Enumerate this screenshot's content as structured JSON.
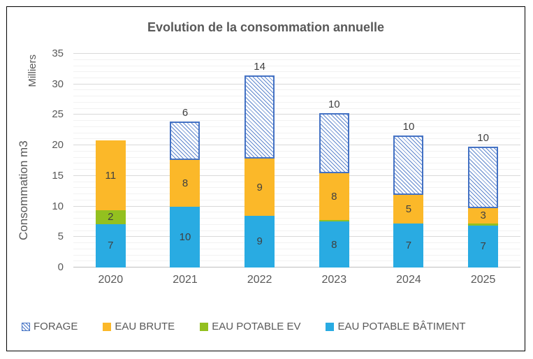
{
  "window": {
    "background": "#FFFFFF",
    "frame_border_color": "#000000"
  },
  "colors": {
    "title_text": "#595959",
    "axis_text": "#595959",
    "value_label_text": "#404040",
    "grid_minor": "#F2F2F2",
    "grid_major": "#D9D9D9",
    "grid_baseline": "#BFBFBF",
    "forage_blue": "#4472C4",
    "eau_brute_orange": "#FBB829",
    "eau_potable_ev_green": "#93C01F",
    "eau_potable_batiment_blue": "#29ABE2"
  },
  "chart_data": {
    "type": "bar",
    "stacked": true,
    "title": "Evolution de la consommation annuelle",
    "y_axis_title": "Consommation m3",
    "y_unit_label": "Milliers",
    "xlabel": "",
    "categories": [
      "2020",
      "2021",
      "2022",
      "2023",
      "2024",
      "2025"
    ],
    "ylim": [
      0,
      35
    ],
    "yticks": [
      0,
      5,
      10,
      15,
      20,
      25,
      30,
      35
    ],
    "minor_grid_step": 1,
    "grid": true,
    "legend_position": "bottom",
    "legend_order": "reverse-of-stack",
    "series": [
      {
        "name": "EAU POTABLE BÂTIMENT",
        "color": "#29ABE2",
        "style": "solid",
        "values": [
          7.1,
          9.9,
          8.5,
          7.5,
          7.2,
          6.9
        ],
        "labels": [
          "7",
          "10",
          "9",
          "8",
          "7",
          "7"
        ],
        "label_position": "inside"
      },
      {
        "name": "EAU POTABLE EV",
        "color": "#93C01F",
        "style": "solid",
        "values": [
          2.3,
          0,
          0,
          0.25,
          0,
          0.35
        ],
        "labels": [
          "2",
          "",
          "",
          "",
          "",
          ""
        ],
        "label_position": "inside"
      },
      {
        "name": "EAU BRUTE",
        "color": "#FBB829",
        "style": "solid",
        "values": [
          11.4,
          7.7,
          9.3,
          7.7,
          4.7,
          2.5
        ],
        "labels": [
          "11",
          "8",
          "9",
          "8",
          "5",
          "3"
        ],
        "label_position": "inside"
      },
      {
        "name": "FORAGE",
        "color": "#4472C4",
        "style": "hatched",
        "values": [
          0,
          6.3,
          13.7,
          9.8,
          9.7,
          10.0
        ],
        "labels": [
          "",
          "6",
          "14",
          "10",
          "10",
          "10"
        ],
        "label_position": "above"
      }
    ]
  }
}
